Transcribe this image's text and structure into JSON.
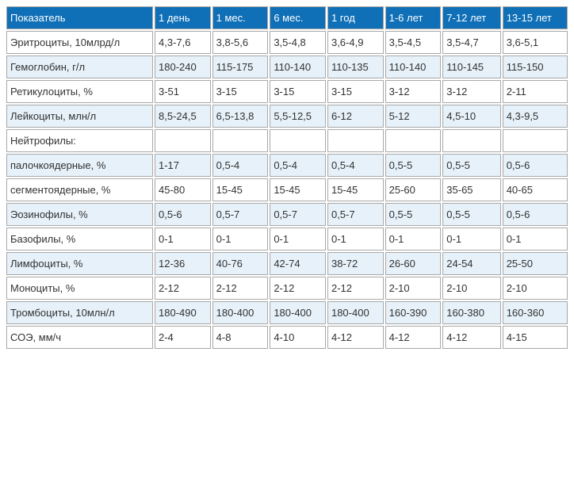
{
  "table": {
    "header_bg": "#0f6fb7",
    "header_fg": "#ffffff",
    "stripe_bg": "#e6f1f9",
    "border_color": "#a8a8a8",
    "columns": [
      "Показатель",
      "1 день",
      "1 мес.",
      "6 мес.",
      "1 год",
      "1-6 лет",
      "7-12 лет",
      "13-15 лет"
    ],
    "rows": [
      {
        "stripe": false,
        "cells": [
          "Эритроциты, 10млрд/л",
          "4,3-7,6",
          "3,8-5,6",
          "3,5-4,8",
          "3,6-4,9",
          "3,5-4,5",
          "3,5-4,7",
          "3,6-5,1"
        ]
      },
      {
        "stripe": true,
        "cells": [
          "Гемоглобин, г/л",
          "180-240",
          "115-175",
          "110-140",
          "110-135",
          "110-140",
          "110-145",
          "115-150"
        ]
      },
      {
        "stripe": false,
        "cells": [
          "Ретикулоциты, %",
          "3-51",
          "3-15",
          "3-15",
          "3-15",
          "3-12",
          "3-12",
          "2-11"
        ]
      },
      {
        "stripe": true,
        "cells": [
          "Лейкоциты, млн/л",
          "8,5-24,5",
          "6,5-13,8",
          "5,5-12,5",
          "6-12",
          "5-12",
          "4,5-10",
          "4,3-9,5"
        ]
      },
      {
        "stripe": false,
        "cells": [
          "Нейтрофилы:",
          "",
          "",
          "",
          "",
          "",
          "",
          ""
        ]
      },
      {
        "stripe": true,
        "cells": [
          "палочкоядерные, %",
          "1-17",
          "0,5-4",
          "0,5-4",
          "0,5-4",
          "0,5-5",
          "0,5-5",
          "0,5-6"
        ]
      },
      {
        "stripe": false,
        "cells": [
          "сегментоядерные, %",
          "45-80",
          "15-45",
          "15-45",
          "15-45",
          "25-60",
          "35-65",
          "40-65"
        ]
      },
      {
        "stripe": true,
        "cells": [
          "Эозинофилы, %",
          "0,5-6",
          "0,5-7",
          "0,5-7",
          "0,5-7",
          "0,5-5",
          "0,5-5",
          "0,5-6"
        ]
      },
      {
        "stripe": false,
        "cells": [
          "Базофилы, %",
          "0-1",
          "0-1",
          "0-1",
          "0-1",
          "0-1",
          "0-1",
          "0-1"
        ]
      },
      {
        "stripe": true,
        "cells": [
          "Лимфоциты, %",
          "12-36",
          "40-76",
          "42-74",
          "38-72",
          "26-60",
          "24-54",
          "25-50"
        ]
      },
      {
        "stripe": false,
        "cells": [
          "Моноциты, %",
          "2-12",
          "2-12",
          "2-12",
          "2-12",
          "2-10",
          "2-10",
          "2-10"
        ]
      },
      {
        "stripe": true,
        "cells": [
          "Тромбоциты, 10млн/л",
          "180-490",
          "180-400",
          "180-400",
          "180-400",
          "160-390",
          "160-380",
          "160-360"
        ]
      },
      {
        "stripe": false,
        "cells": [
          "СОЭ, мм/ч",
          "2-4",
          "4-8",
          "4-10",
          "4-12",
          "4-12",
          "4-12",
          "4-15"
        ]
      }
    ]
  }
}
